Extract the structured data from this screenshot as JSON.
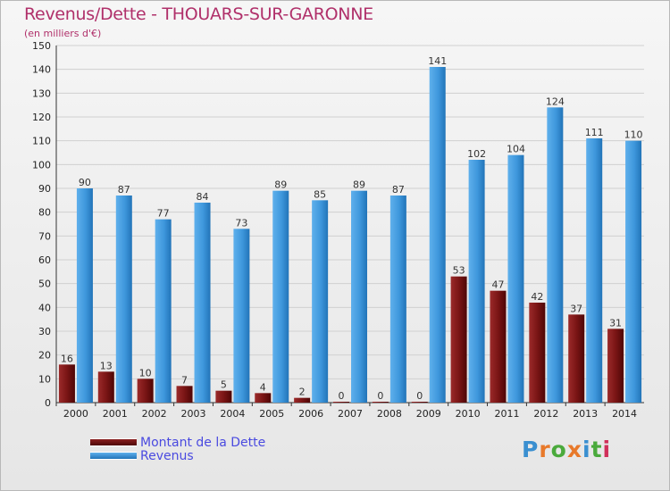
{
  "title": "Revenus/Dette - THOUARS-SUR-GARONNE",
  "subtitle": "(en milliers d'€)",
  "logo": {
    "text": "Proxiti",
    "colors": [
      "#3a8fd0",
      "#e8792a",
      "#4aaa3c",
      "#e8792a",
      "#3a8fd0",
      "#4aaa3c",
      "#d0305a"
    ]
  },
  "colors": {
    "title": "#b0306a",
    "dette": "#7a1515",
    "revenus": "#3590d8",
    "legend_text": "#4a4ae0"
  },
  "chart_data": {
    "type": "bar",
    "categories": [
      "2000",
      "2001",
      "2002",
      "2003",
      "2004",
      "2005",
      "2006",
      "2007",
      "2008",
      "2009",
      "2010",
      "2011",
      "2012",
      "2013",
      "2014"
    ],
    "series": [
      {
        "name": "Montant de la Dette",
        "values": [
          16,
          13,
          10,
          7,
          5,
          4,
          2,
          0,
          0,
          0,
          53,
          47,
          42,
          37,
          31
        ]
      },
      {
        "name": "Revenus",
        "values": [
          90,
          87,
          77,
          84,
          73,
          89,
          85,
          89,
          87,
          141,
          102,
          104,
          124,
          111,
          110
        ]
      }
    ],
    "title": "Revenus/Dette - THOUARS-SUR-GARONNE",
    "ylabel": "(en milliers d'€)",
    "ylim": [
      0,
      150
    ],
    "yticks": [
      0,
      10,
      20,
      30,
      40,
      50,
      60,
      70,
      80,
      90,
      100,
      110,
      120,
      130,
      140,
      150
    ],
    "grid": true,
    "legend_position": "bottom-left"
  }
}
